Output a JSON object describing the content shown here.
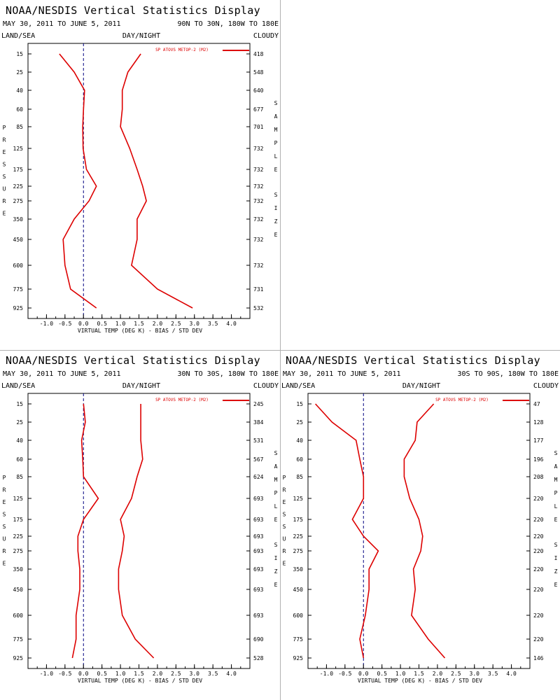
{
  "display_title": "NOAA/NESDIS Vertical Statistics Display",
  "colors": {
    "line": "#dd0000",
    "axis": "#000000",
    "zero_line": "#000080"
  },
  "chart_data": [
    {
      "type": "line",
      "title": "NOAA/NESDIS Vertical Statistics Display",
      "date_range": "MAY 30, 2011 TO JUNE 5, 2011",
      "region": "90N TO 30N, 180W TO 180E",
      "label_left": "LAND/SEA",
      "label_center": "DAY/NIGHT",
      "label_right": "CLOUDY",
      "left_axis_title": "PRESSURE",
      "right_axis_title": "SAMPLE SIZE",
      "xlabel": "VIRTUAL TEMP (DEG K) - BIAS / STD DEV",
      "xlim": [
        -1.5,
        4.5
      ],
      "xticks": [
        "-1.0",
        "-0.5",
        "0.0",
        "0.5",
        "1.0",
        "1.5",
        "2.0",
        "2.5",
        "3.0",
        "3.5",
        "4.0"
      ],
      "legend": "SP ATOVS METOP-2 (M2)",
      "pressure_levels": [
        "15",
        "25",
        "40",
        "60",
        "85",
        "125",
        "175",
        "225",
        "275",
        "350",
        "450",
        "600",
        "775",
        "925"
      ],
      "sample_size": [
        "418",
        "548",
        "640",
        "677",
        "701",
        "732",
        "732",
        "732",
        "732",
        "732",
        "732",
        "732",
        "731",
        "532"
      ],
      "bias": [
        -0.65,
        -0.25,
        0.03,
        0.0,
        -0.02,
        -0.01,
        0.08,
        0.35,
        0.15,
        -0.25,
        -0.55,
        -0.5,
        -0.35,
        0.35
      ],
      "std_dev": [
        1.55,
        1.2,
        1.05,
        1.05,
        1.0,
        1.25,
        1.45,
        1.6,
        1.7,
        1.45,
        1.45,
        1.3,
        2.0,
        2.95
      ]
    },
    {
      "type": "line",
      "title": "NOAA/NESDIS Vertical Statistics Display",
      "date_range": "MAY 30, 2011 TO JUNE 5, 2011",
      "region": "30N TO 30S, 180W TO 180E",
      "label_left": "LAND/SEA",
      "label_center": "DAY/NIGHT",
      "label_right": "CLOUDY",
      "left_axis_title": "PRESSURE",
      "right_axis_title": "SAMPLE SIZE",
      "xlabel": "VIRTUAL TEMP (DEG K) - BIAS / STD DEV",
      "xlim": [
        -1.5,
        4.5
      ],
      "xticks": [
        "-1.0",
        "-0.5",
        "0.0",
        "0.5",
        "1.0",
        "1.5",
        "2.0",
        "2.5",
        "3.0",
        "3.5",
        "4.0"
      ],
      "legend": "SP ATOVS METOP-2 (M2)",
      "pressure_levels": [
        "15",
        "25",
        "40",
        "60",
        "85",
        "125",
        "175",
        "225",
        "275",
        "350",
        "450",
        "600",
        "775",
        "925"
      ],
      "sample_size": [
        "245",
        "384",
        "531",
        "567",
        "624",
        "693",
        "693",
        "693",
        "693",
        "693",
        "693",
        "693",
        "690",
        "528"
      ],
      "bias": [
        0.0,
        0.05,
        -0.05,
        -0.02,
        0.0,
        0.4,
        0.0,
        -0.15,
        -0.15,
        -0.1,
        -0.1,
        -0.2,
        -0.2,
        -0.3
      ],
      "std_dev": [
        1.55,
        1.55,
        1.55,
        1.6,
        1.45,
        1.3,
        1.0,
        1.1,
        1.05,
        0.95,
        0.95,
        1.05,
        1.4,
        1.9
      ]
    },
    {
      "type": "line",
      "title": "NOAA/NESDIS Vertical Statistics Display",
      "date_range": "MAY 30, 2011 TO JUNE 5, 2011",
      "region": "30S TO 90S, 180W TO 180E",
      "label_left": "LAND/SEA",
      "label_center": "DAY/NIGHT",
      "label_right": "CLOUDY",
      "left_axis_title": "PRESSURE",
      "right_axis_title": "SAMPLE SIZE",
      "xlabel": "VIRTUAL TEMP (DEG K) - BIAS / STD DEV",
      "xlim": [
        -1.5,
        4.5
      ],
      "xticks": [
        "-1.0",
        "-0.5",
        "0.0",
        "0.5",
        "1.0",
        "1.5",
        "2.0",
        "2.5",
        "3.0",
        "3.5",
        "4.0"
      ],
      "legend": "SP ATOVS METOP-2 (M2)",
      "pressure_levels": [
        "15",
        "25",
        "40",
        "60",
        "85",
        "125",
        "175",
        "225",
        "275",
        "350",
        "450",
        "600",
        "775",
        "925"
      ],
      "sample_size": [
        "47",
        "128",
        "177",
        "196",
        "208",
        "220",
        "220",
        "220",
        "220",
        "220",
        "220",
        "220",
        "220",
        "146"
      ],
      "bias": [
        -1.3,
        -0.85,
        -0.2,
        -0.1,
        0.0,
        0.0,
        -0.3,
        0.0,
        0.4,
        0.15,
        0.15,
        0.05,
        -0.1,
        0.0
      ],
      "std_dev": [
        1.9,
        1.45,
        1.4,
        1.1,
        1.1,
        1.25,
        1.5,
        1.6,
        1.55,
        1.35,
        1.4,
        1.3,
        1.75,
        2.2
      ]
    }
  ]
}
